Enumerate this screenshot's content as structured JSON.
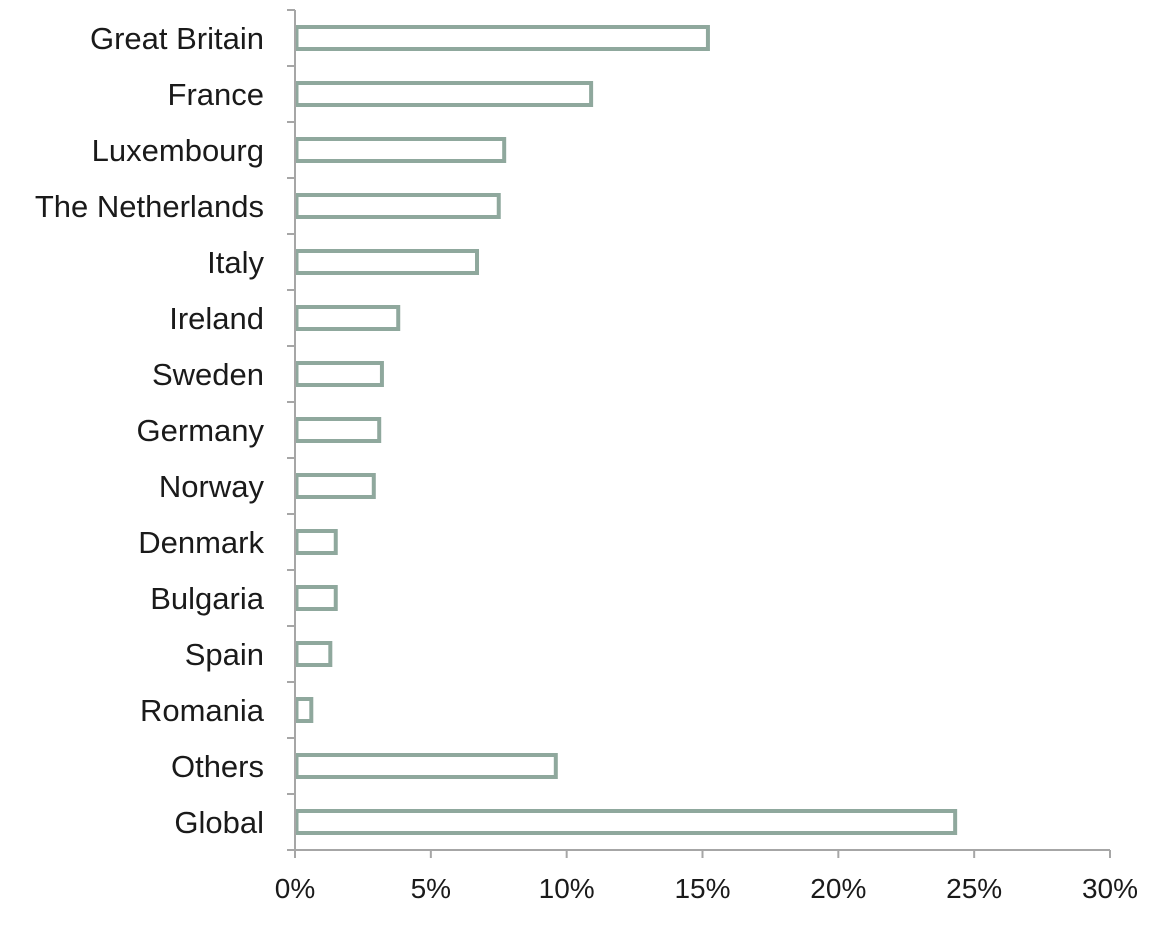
{
  "chart_data": {
    "type": "bar",
    "orientation": "horizontal",
    "categories": [
      "Great Britain",
      "France",
      "Luxembourg",
      "The Netherlands",
      "Italy",
      "Ireland",
      "Sweden",
      "Germany",
      "Norway",
      "Denmark",
      "Bulgaria",
      "Spain",
      "Romania",
      "Others",
      "Global"
    ],
    "values": [
      15.2,
      10.9,
      7.7,
      7.5,
      6.7,
      3.8,
      3.2,
      3.1,
      2.9,
      1.5,
      1.5,
      1.3,
      0.6,
      9.6,
      24.3
    ],
    "unit": "%",
    "xlim": [
      0,
      30
    ],
    "x_ticks": [
      0,
      5,
      10,
      15,
      20,
      25,
      30
    ],
    "x_tick_labels": [
      "0%",
      "5%",
      "10%",
      "15%",
      "20%",
      "25%",
      "30%"
    ],
    "title": "",
    "xlabel": "",
    "ylabel": "",
    "grid": false,
    "legend": "none",
    "bar_style": "outline",
    "bar_color": "#8fa89d",
    "axis_color": "#a6a6a6"
  }
}
